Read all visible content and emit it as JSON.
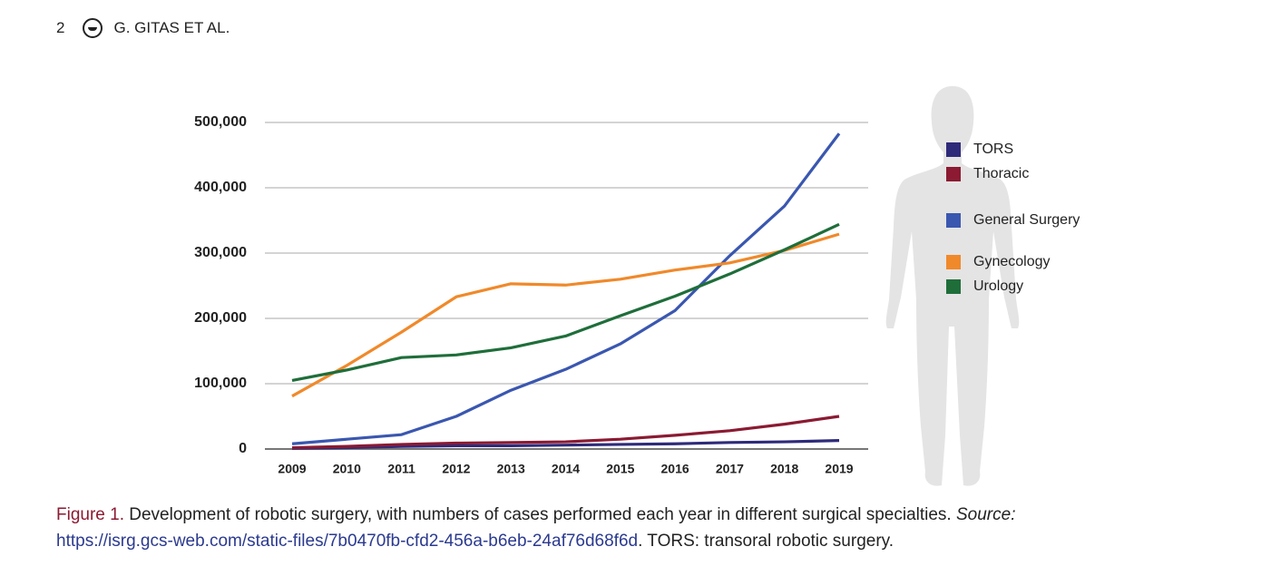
{
  "header": {
    "page": "2",
    "authors": "G. GITAS ET AL."
  },
  "chart_data": {
    "type": "line",
    "categories": [
      "2009",
      "2010",
      "2011",
      "2012",
      "2013",
      "2014",
      "2015",
      "2016",
      "2017",
      "2018",
      "2019"
    ],
    "series": [
      {
        "name": "TORS",
        "color": "#2e2a7a",
        "values": [
          1000,
          2000,
          4000,
          5000,
          5000,
          6000,
          7000,
          8000,
          10000,
          11000,
          13000
        ]
      },
      {
        "name": "Thoracic",
        "color": "#8b1a32",
        "values": [
          2000,
          4000,
          7000,
          9000,
          10000,
          11000,
          15000,
          21000,
          28000,
          38000,
          50000
        ]
      },
      {
        "name": "General Surgery",
        "color": "#3a57b0",
        "values": [
          8000,
          15000,
          22000,
          50000,
          90000,
          122000,
          161000,
          212000,
          296000,
          372000,
          483000
        ]
      },
      {
        "name": "Gynecology",
        "color": "#f0892a",
        "values": [
          81000,
          128000,
          179000,
          233000,
          253000,
          251000,
          260000,
          274000,
          285000,
          304000,
          329000
        ]
      },
      {
        "name": "Urology",
        "color": "#1f6e3a",
        "values": [
          105000,
          121000,
          140000,
          144000,
          155000,
          173000,
          204000,
          234000,
          268000,
          305000,
          344000
        ]
      }
    ],
    "ylim": [
      0,
      500000
    ],
    "yticks": [
      0,
      {
        "value": 100000,
        "label": "100,000"
      },
      {
        "value": 200000,
        "label": "200,000"
      },
      {
        "value": 300000,
        "label": "300,000"
      },
      {
        "value": 400000,
        "label": "400,000"
      },
      {
        "value": 500000,
        "label": "500,000"
      }
    ],
    "grid": true
  },
  "caption": {
    "label": "Figure 1.",
    "text": " Development of robotic surgery, with numbers of cases performed each year in different surgical specialties. ",
    "source_label": "Source:",
    "url": "https://isrg.gcs-web.com/static-files/7b0470fb-cfd2-456a-b6eb-24af76d68f6d",
    "note": ". TORS: transoral robotic surgery."
  }
}
